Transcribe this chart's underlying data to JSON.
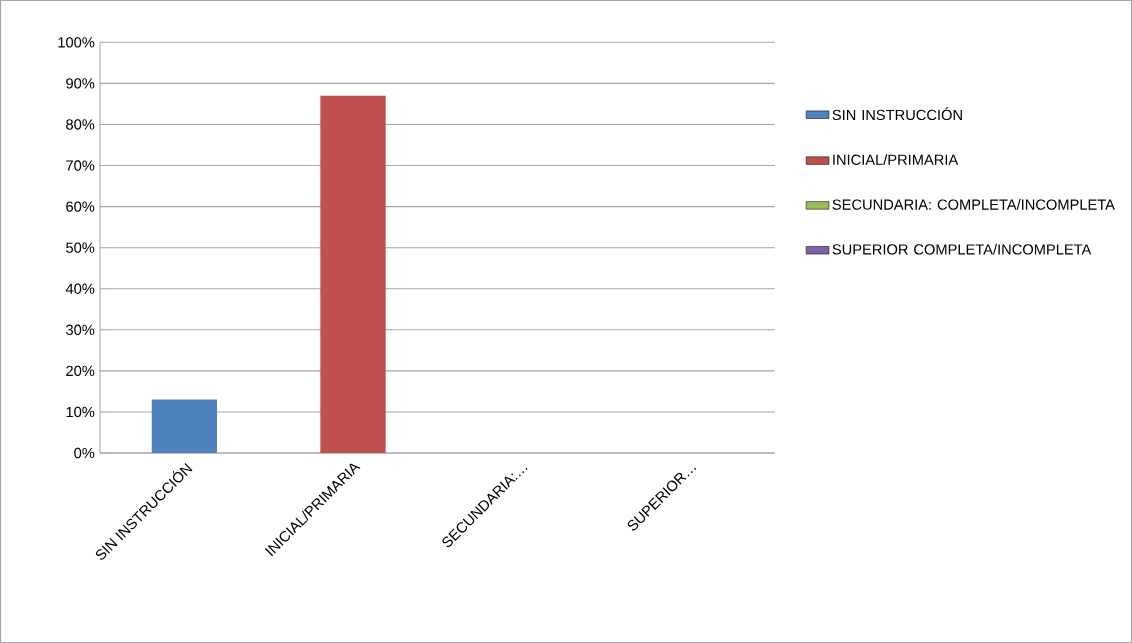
{
  "chart_data": {
    "type": "bar",
    "categories": [
      "SIN INSTRUCCIÓN",
      "INICIAL/PRIMARIA",
      "SECUNDARIA:…",
      "SUPERIOR…"
    ],
    "series": [
      {
        "name": "SIN INSTRUCCIÓN",
        "color": "#4f81bd",
        "values": [
          13,
          null,
          null,
          null
        ]
      },
      {
        "name": "INICIAL/PRIMARIA",
        "color": "#c0504d",
        "values": [
          null,
          87,
          null,
          null
        ]
      },
      {
        "name": "SECUNDARIA: COMPLETA/INCOMPLETA",
        "color": "#9bbb59",
        "values": [
          null,
          null,
          0,
          null
        ]
      },
      {
        "name": "SUPERIOR COMPLETA/INCOMPLETA",
        "color": "#8064a2",
        "values": [
          null,
          null,
          null,
          0
        ]
      }
    ],
    "ylim": [
      0,
      100
    ],
    "yticks": [
      {
        "value": 0,
        "label": "0%"
      },
      {
        "value": 10,
        "label": "10%"
      },
      {
        "value": 20,
        "label": "20%"
      },
      {
        "value": 30,
        "label": "30%"
      },
      {
        "value": 40,
        "label": "40%"
      },
      {
        "value": 50,
        "label": "50%"
      },
      {
        "value": 60,
        "label": "60%"
      },
      {
        "value": 70,
        "label": "70%"
      },
      {
        "value": 80,
        "label": "80%"
      },
      {
        "value": 90,
        "label": "90%"
      },
      {
        "value": 100,
        "label": "100%"
      }
    ],
    "grid": "y",
    "legend": "right"
  }
}
